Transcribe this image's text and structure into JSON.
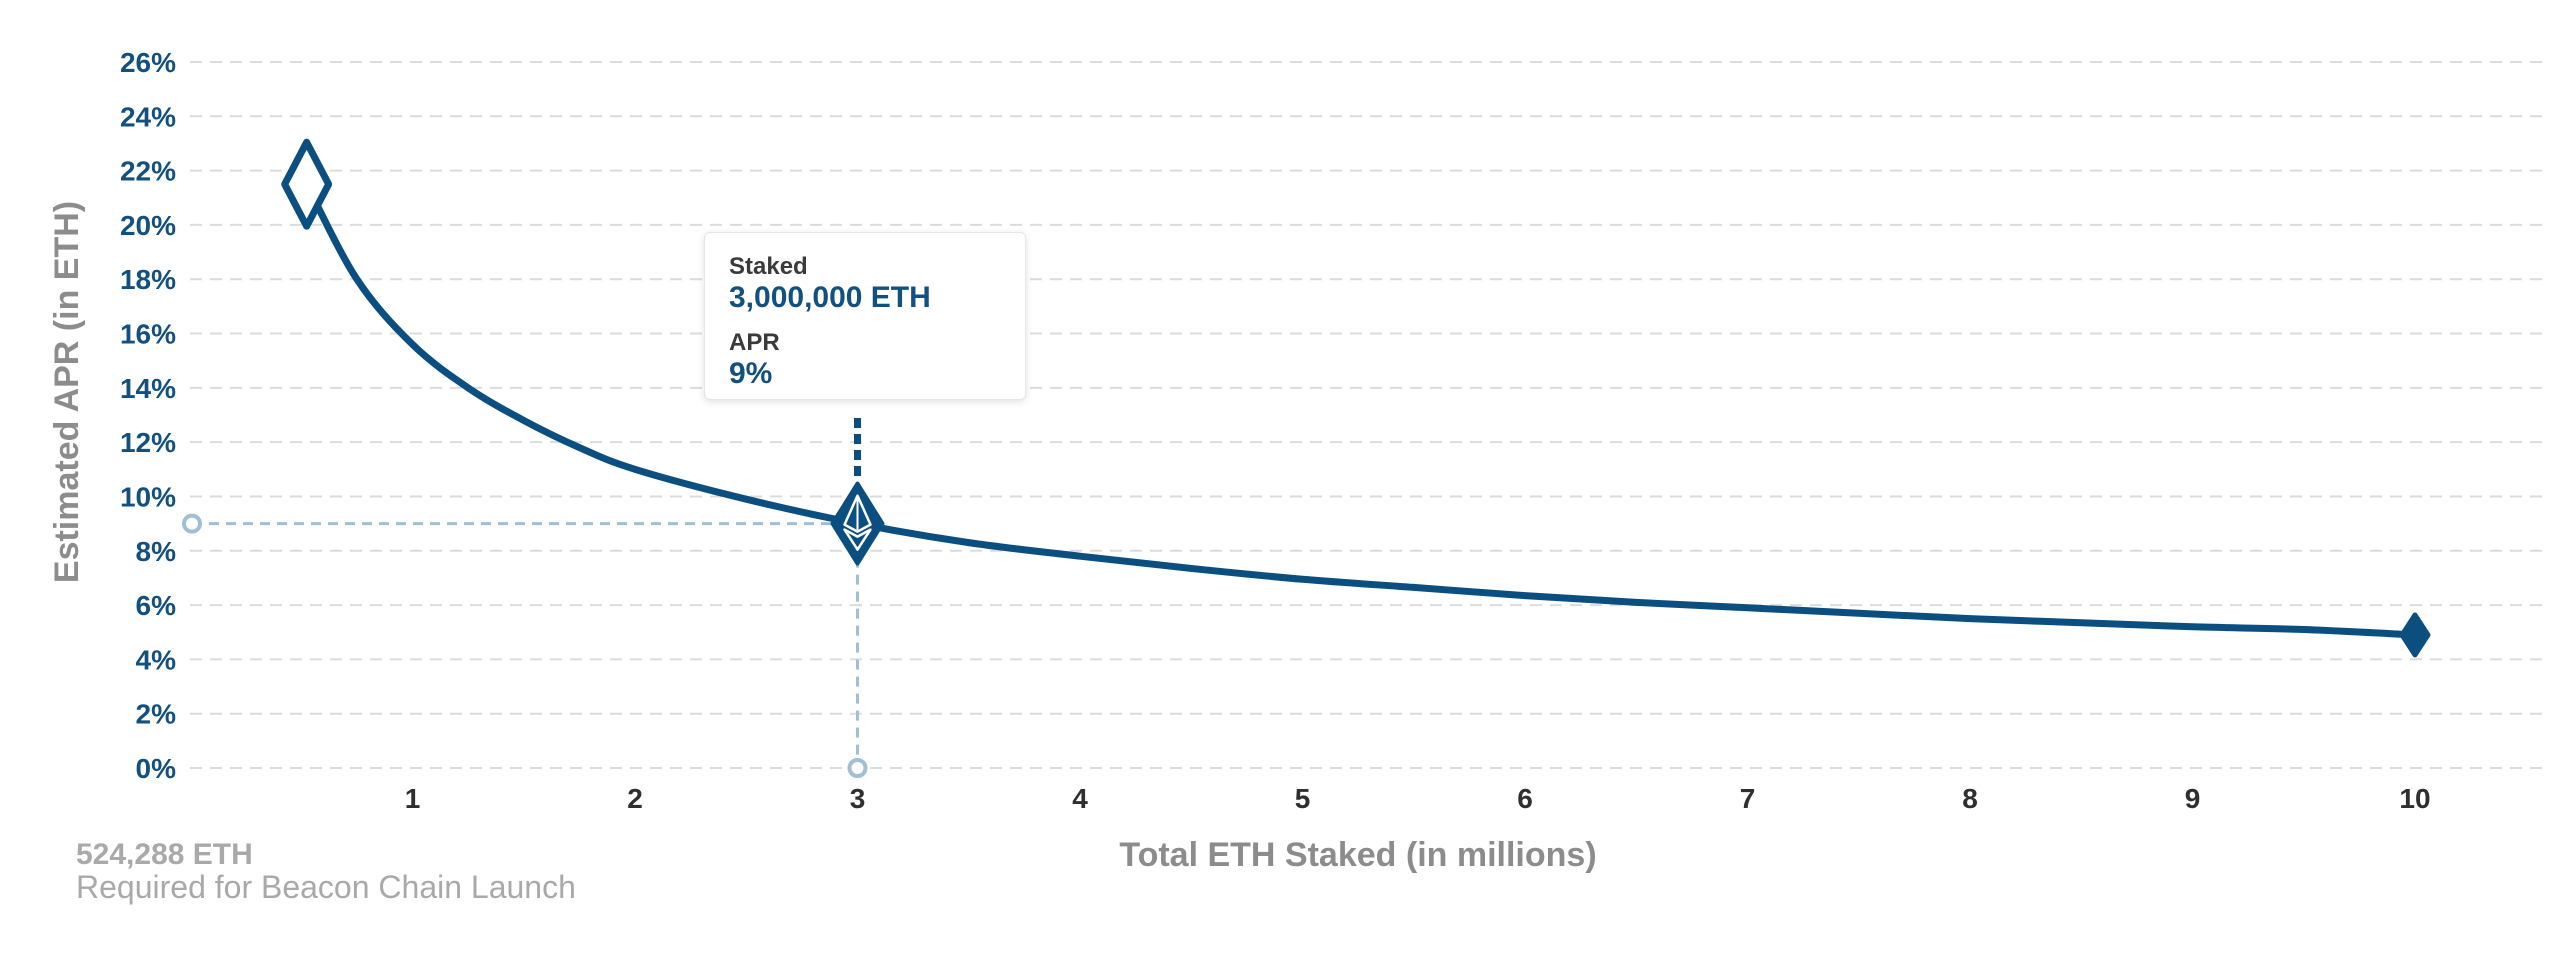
{
  "chart_data": {
    "type": "line",
    "xlabel": "Total ETH Staked  (in millions)",
    "ylabel": "Estimated APR (in ETH)",
    "x_ticks": [
      "1",
      "2",
      "3",
      "4",
      "5",
      "6",
      "7",
      "8",
      "9",
      "10"
    ],
    "y_ticks": [
      "0%",
      "2%",
      "4%",
      "6%",
      "8%",
      "10%",
      "12%",
      "14%",
      "16%",
      "18%",
      "20%",
      "22%",
      "24%",
      "26%"
    ],
    "xlim": [
      0,
      10.3
    ],
    "ylim": [
      0,
      26
    ],
    "grid": true,
    "series": [
      {
        "x": [
          0.524288,
          0.75,
          1.0,
          1.25,
          1.5,
          1.75,
          2.0,
          2.5,
          3.0,
          3.5,
          4.0,
          4.5,
          5.0,
          5.5,
          6.0,
          6.5,
          7.0,
          7.5,
          8.0,
          8.5,
          9.0,
          9.5,
          10.0
        ],
        "y": [
          21.5,
          18.0,
          15.6,
          14.0,
          12.8,
          11.8,
          11.0,
          9.9,
          9.0,
          8.3,
          7.8,
          7.35,
          6.95,
          6.65,
          6.35,
          6.1,
          5.9,
          5.7,
          5.5,
          5.35,
          5.2,
          5.1,
          4.9
        ]
      }
    ],
    "start_point": {
      "x": 0.524288,
      "y": 21.5
    },
    "end_point": {
      "x": 10.0,
      "y": 4.9
    },
    "highlight": {
      "x": 3.0,
      "y": 9.0
    },
    "tooltip": {
      "staked_label": "Staked",
      "staked_value": "3,000,000 ETH",
      "apr_label": "APR",
      "apr_value": "9%"
    },
    "note": {
      "main": "524,288 ETH",
      "sub": "Required for Beacon Chain Launch"
    },
    "colors": {
      "line": "#0b4f80",
      "tick_y": "#12507f",
      "tick_x": "#2f2f2f",
      "guide": "#9fbfd4",
      "grid": "#dcdcdc"
    }
  }
}
